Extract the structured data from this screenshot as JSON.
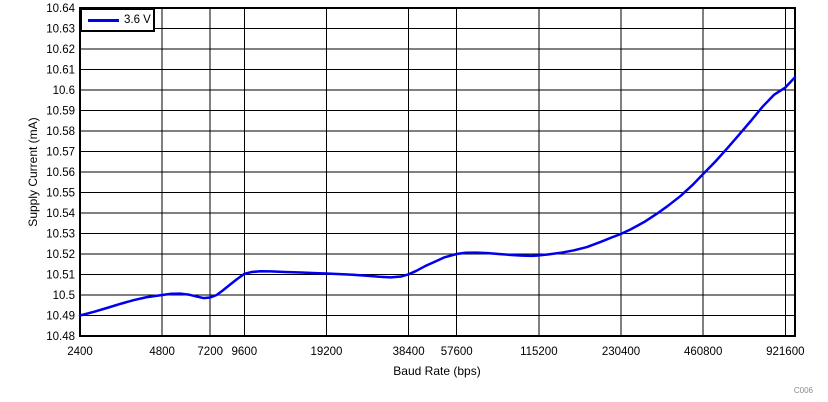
{
  "chart_data": {
    "type": "line",
    "title": "",
    "xlabel": "Baud Rate (bps)",
    "ylabel": "Supply Current (mA)",
    "watermark": "C006",
    "x_scale": "log",
    "xlim": [
      2400,
      1000000
    ],
    "ylim": [
      10.48,
      10.64
    ],
    "grid": true,
    "x_ticks": [
      2400,
      4800,
      7200,
      9600,
      19200,
      38400,
      57600,
      115200,
      230400,
      460800,
      921600
    ],
    "x_tick_labels": [
      "2400",
      "4800",
      "7200",
      "9600",
      "19200",
      "38400",
      "57600",
      "115200",
      "230400",
      "460800",
      "921600"
    ],
    "y_ticks": [
      10.48,
      10.49,
      10.5,
      10.51,
      10.52,
      10.53,
      10.54,
      10.55,
      10.56,
      10.57,
      10.58,
      10.59,
      10.6,
      10.61,
      10.62,
      10.63,
      10.64
    ],
    "y_tick_labels": [
      "10.48",
      "10.49",
      "10.5",
      "10.51",
      "10.52",
      "10.53",
      "10.54",
      "10.55",
      "10.56",
      "10.57",
      "10.58",
      "10.59",
      "10.6",
      "10.61",
      "10.62",
      "10.63",
      "10.64"
    ],
    "legend": {
      "position": "top-left",
      "entries": [
        {
          "label": "3.6 V",
          "color": "#0000EE"
        }
      ]
    },
    "series": [
      {
        "name": "3.6 V",
        "color": "#0000EE",
        "points": [
          [
            2400,
            10.49
          ],
          [
            2700,
            10.4918
          ],
          [
            3000,
            10.4936
          ],
          [
            3400,
            10.4958
          ],
          [
            3800,
            10.4976
          ],
          [
            4200,
            10.4989
          ],
          [
            4800,
            10.5
          ],
          [
            5200,
            10.5006
          ],
          [
            5600,
            10.5007
          ],
          [
            6000,
            10.5002
          ],
          [
            6400,
            10.4993
          ],
          [
            6800,
            10.4985
          ],
          [
            7200,
            10.4988
          ],
          [
            7600,
            10.5
          ],
          [
            8000,
            10.5022
          ],
          [
            8500,
            10.505
          ],
          [
            9000,
            10.5076
          ],
          [
            9600,
            10.5103
          ],
          [
            10200,
            10.5112
          ],
          [
            11000,
            10.5116
          ],
          [
            12000,
            10.5115
          ],
          [
            13500,
            10.5112
          ],
          [
            15500,
            10.511
          ],
          [
            17500,
            10.5107
          ],
          [
            19200,
            10.5105
          ],
          [
            21500,
            10.5102
          ],
          [
            24000,
            10.5099
          ],
          [
            27000,
            10.5094
          ],
          [
            30000,
            10.5089
          ],
          [
            33000,
            10.5086
          ],
          [
            36000,
            10.509
          ],
          [
            38400,
            10.5101
          ],
          [
            41000,
            10.5118
          ],
          [
            44000,
            10.514
          ],
          [
            48000,
            10.5163
          ],
          [
            52000,
            10.5184
          ],
          [
            57600,
            10.52
          ],
          [
            62000,
            10.5206
          ],
          [
            68000,
            10.5207
          ],
          [
            75000,
            10.5204
          ],
          [
            82000,
            10.52
          ],
          [
            90000,
            10.5196
          ],
          [
            100000,
            10.5192
          ],
          [
            108000,
            10.5191
          ],
          [
            115200,
            10.5193
          ],
          [
            125000,
            10.5198
          ],
          [
            140000,
            10.5207
          ],
          [
            155000,
            10.5218
          ],
          [
            172800,
            10.5234
          ],
          [
            195000,
            10.526
          ],
          [
            215000,
            10.5283
          ],
          [
            230400,
            10.5298
          ],
          [
            250000,
            10.532
          ],
          [
            280000,
            10.5356
          ],
          [
            310000,
            10.5394
          ],
          [
            340000,
            10.5432
          ],
          [
            380000,
            10.5482
          ],
          [
            420000,
            10.5535
          ],
          [
            460800,
            10.559
          ],
          [
            510000,
            10.565
          ],
          [
            560000,
            10.571
          ],
          [
            620000,
            10.5778
          ],
          [
            690000,
            10.585
          ],
          [
            760000,
            10.5918
          ],
          [
            840000,
            10.5978
          ],
          [
            921600,
            10.6012
          ],
          [
            1000000,
            10.6062
          ]
        ]
      }
    ]
  },
  "colors": {
    "line": "#0000EE",
    "grid": "#000000",
    "axis": "#000000",
    "background": "#FFFFFF",
    "watermark": "#8A8A8A"
  }
}
